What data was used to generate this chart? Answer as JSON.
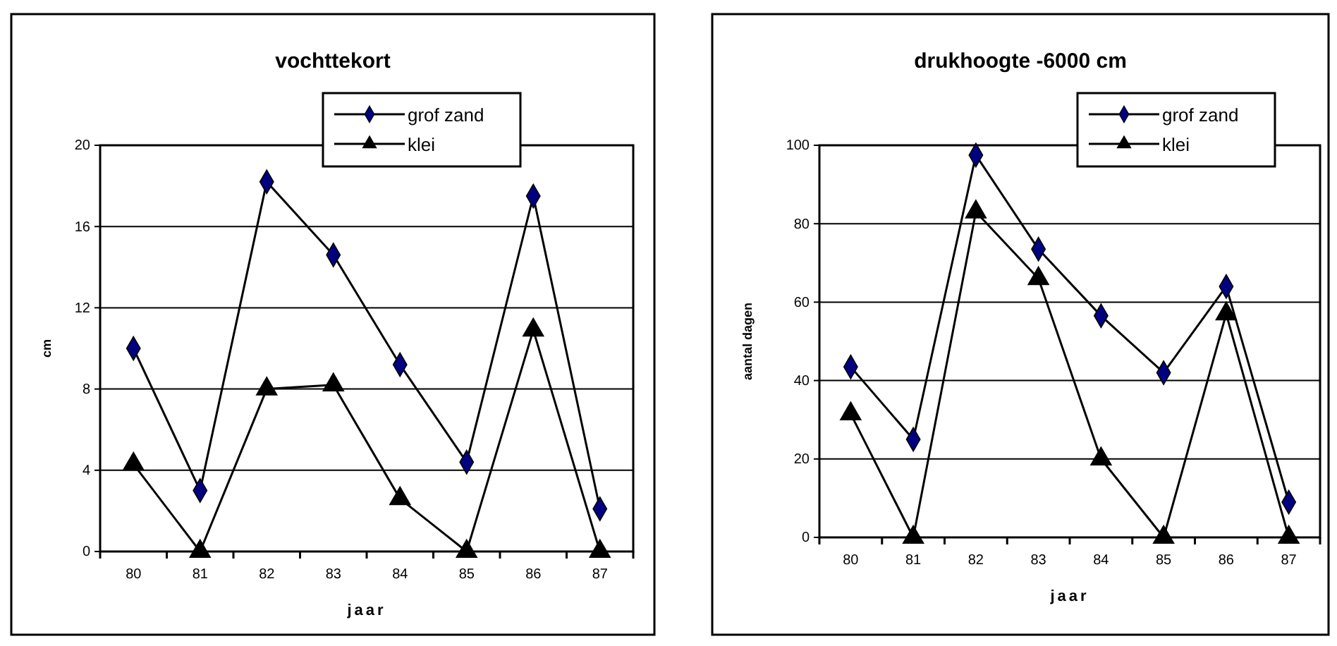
{
  "chart_data": [
    {
      "type": "line",
      "title": "vochttekort",
      "xlabel": "jaar",
      "ylabel": "cm",
      "categories": [
        "80",
        "81",
        "82",
        "83",
        "84",
        "85",
        "86",
        "87"
      ],
      "ylim": [
        0,
        20
      ],
      "yticks": [
        0,
        4,
        8,
        12,
        16,
        20
      ],
      "grid": "y",
      "legend": "top right",
      "series": [
        {
          "name": "grof zand",
          "color": "#000080",
          "marker": "diamond",
          "values": [
            10,
            3,
            18.2,
            14.6,
            9.2,
            4.4,
            17.5,
            2.1
          ]
        },
        {
          "name": "klei",
          "color": "#000000",
          "marker": "triangle",
          "values": [
            4.3,
            0,
            8,
            8.2,
            2.6,
            0,
            10.9,
            0
          ]
        }
      ]
    },
    {
      "type": "line",
      "title": "drukhoogte -6000 cm",
      "xlabel": "jaar",
      "ylabel": "aantal dagen",
      "categories": [
        "80",
        "81",
        "82",
        "83",
        "84",
        "85",
        "86",
        "87"
      ],
      "ylim": [
        0,
        100
      ],
      "yticks": [
        0,
        20,
        40,
        60,
        80,
        100
      ],
      "grid": "y",
      "legend": "top right",
      "series": [
        {
          "name": "grof zand",
          "color": "#000080",
          "marker": "diamond",
          "values": [
            43.5,
            25,
            97.5,
            73.5,
            56.5,
            42,
            64,
            9
          ]
        },
        {
          "name": "klei",
          "color": "#000000",
          "marker": "triangle",
          "values": [
            31.5,
            0,
            83,
            66,
            20,
            0,
            57,
            0
          ]
        }
      ]
    }
  ]
}
